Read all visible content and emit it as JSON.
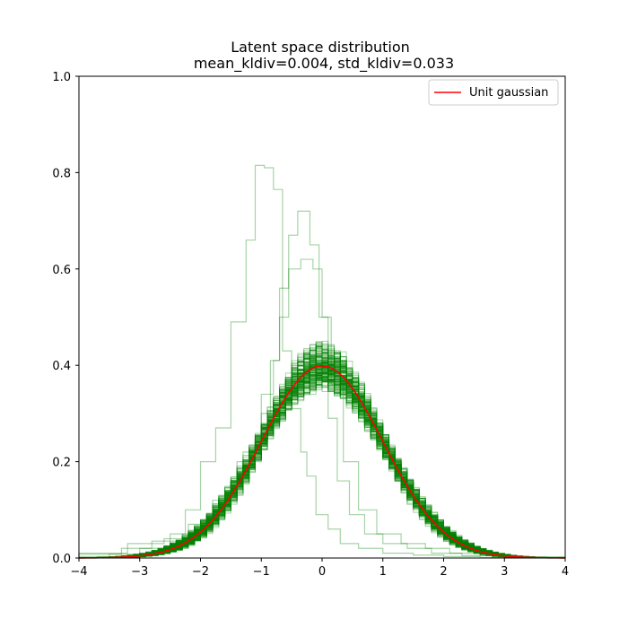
{
  "chart_data": {
    "type": "line",
    "title_line1": "Latent space distribution",
    "title_line2": "mean_kldiv=0.004, std_kldiv=0.033",
    "xlabel": "",
    "ylabel": "",
    "xlim": [
      -4,
      4
    ],
    "ylim": [
      0,
      1.0
    ],
    "xticks": [
      -4,
      -3,
      -2,
      -1,
      0,
      1,
      2,
      3,
      4
    ],
    "xtick_labels": [
      "−4",
      "−3",
      "−2",
      "−1",
      "0",
      "1",
      "2",
      "3",
      "4"
    ],
    "yticks": [
      0.0,
      0.2,
      0.4,
      0.6,
      0.8,
      1.0
    ],
    "ytick_labels": [
      "0.0",
      "0.2",
      "0.4",
      "0.6",
      "0.8",
      "1.0"
    ],
    "grid": false,
    "legend_placement": "top-right",
    "series": [
      {
        "name": "Unit gaussian",
        "kind": "line",
        "color": "#ff0000",
        "function": "standard normal pdf",
        "x": [
          -4,
          -3.5,
          -3,
          -2.5,
          -2,
          -1.5,
          -1,
          -0.5,
          0,
          0.5,
          1,
          1.5,
          2,
          2.5,
          3,
          3.5,
          4
        ],
        "y": [
          0.0001,
          0.0009,
          0.0044,
          0.0175,
          0.054,
          0.1295,
          0.242,
          0.3521,
          0.3989,
          0.3521,
          0.242,
          0.1295,
          0.054,
          0.0175,
          0.0044,
          0.0009,
          0.0001
        ]
      },
      {
        "kind": "step-histogram-bundle",
        "color": "#008000",
        "description_of_content": "many latent-dimension histograms that closely follow the unit gaussian",
        "peak_range": [
          0.37,
          0.45
        ]
      },
      {
        "kind": "step-histogram",
        "color": "#008000",
        "x": [
          -4.0,
          -3.5,
          -3.0,
          -2.5,
          -2.25,
          -2.0,
          -1.75,
          -1.5,
          -1.25,
          -1.1,
          -0.95,
          -0.8,
          -0.65,
          -0.5,
          -0.35,
          -0.25,
          -0.1,
          0.1,
          0.3,
          0.6,
          1.0,
          1.5,
          2.0,
          2.6,
          4.0
        ],
        "y": [
          0.003,
          0.008,
          0.02,
          0.05,
          0.1,
          0.2,
          0.27,
          0.49,
          0.66,
          0.815,
          0.81,
          0.765,
          0.43,
          0.31,
          0.22,
          0.17,
          0.09,
          0.06,
          0.03,
          0.02,
          0.01,
          0.006,
          0.003,
          0.001
        ]
      },
      {
        "kind": "step-histogram",
        "color": "#008000",
        "x": [
          -4.0,
          -3.2,
          -2.6,
          -2.2,
          -1.8,
          -1.4,
          -1.0,
          -0.8,
          -0.7,
          -0.55,
          -0.4,
          -0.2,
          -0.05,
          0.1,
          0.25,
          0.45,
          0.7,
          1.0,
          1.4,
          1.8,
          2.3,
          2.8,
          4.0
        ],
        "y": [
          0.01,
          0.03,
          0.04,
          0.07,
          0.12,
          0.2,
          0.34,
          0.41,
          0.56,
          0.67,
          0.72,
          0.65,
          0.5,
          0.29,
          0.16,
          0.09,
          0.05,
          0.03,
          0.02,
          0.01,
          0.005,
          0.002
        ]
      },
      {
        "kind": "step-histogram",
        "color": "#008000",
        "x": [
          -4.0,
          -3.3,
          -2.8,
          -2.3,
          -1.9,
          -1.6,
          -1.3,
          -1.0,
          -0.85,
          -0.7,
          -0.55,
          -0.35,
          -0.15,
          0.0,
          0.15,
          0.35,
          0.6,
          0.9,
          1.3,
          1.7,
          2.1,
          2.6,
          3.2,
          4.0
        ],
        "y": [
          0.008,
          0.02,
          0.035,
          0.05,
          0.08,
          0.13,
          0.22,
          0.3,
          0.41,
          0.5,
          0.6,
          0.62,
          0.6,
          0.5,
          0.36,
          0.2,
          0.1,
          0.05,
          0.03,
          0.02,
          0.01,
          0.005,
          0.002
        ]
      }
    ]
  }
}
